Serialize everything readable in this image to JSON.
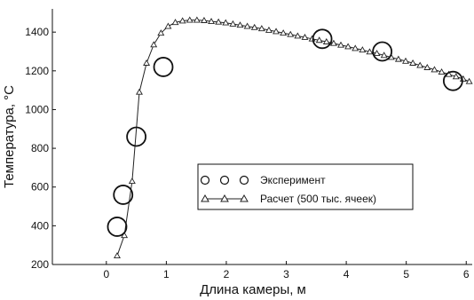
{
  "chart_data": {
    "type": "scatter",
    "title": "",
    "xlabel": "Длина камеры, м",
    "ylabel": "Температура, °C",
    "xlim": [
      -0.9,
      6.1
    ],
    "ylim": [
      200,
      1520
    ],
    "xticks": [
      0,
      1,
      2,
      3,
      4,
      5,
      6
    ],
    "yticks": [
      200,
      400,
      600,
      800,
      1000,
      1200,
      1400
    ],
    "xtick_labels": [
      "0",
      "1",
      "2",
      "3",
      "4",
      "5",
      "6"
    ],
    "ytick_labels": [
      "200",
      "400",
      "600",
      "800",
      "1000",
      "1200",
      "1400"
    ],
    "grid": false,
    "legend_position": "center-right",
    "series": [
      {
        "name": "Эксперимент",
        "marker": "circle",
        "line": false,
        "x": [
          0.18,
          0.28,
          0.5,
          0.95,
          3.6,
          4.6,
          5.78
        ],
        "y": [
          395,
          560,
          860,
          1220,
          1365,
          1300,
          1148
        ]
      },
      {
        "name": "Расчет (500 тыс. ячеек)",
        "marker": "triangle",
        "line": true,
        "x": [
          0.18,
          0.3,
          0.43,
          0.55,
          0.67,
          0.79,
          0.91,
          1.03,
          1.15,
          1.27,
          1.39,
          1.51,
          1.63,
          1.75,
          1.87,
          1.99,
          2.11,
          2.23,
          2.35,
          2.47,
          2.59,
          2.71,
          2.83,
          2.95,
          3.07,
          3.19,
          3.31,
          3.43,
          3.55,
          3.67,
          3.79,
          3.91,
          4.03,
          4.15,
          4.27,
          4.39,
          4.51,
          4.63,
          4.75,
          4.87,
          4.99,
          5.11,
          5.23,
          5.35,
          5.47,
          5.59,
          5.71,
          5.83,
          5.95,
          6.05
        ],
        "y": [
          245,
          350,
          630,
          1090,
          1240,
          1335,
          1395,
          1430,
          1450,
          1458,
          1462,
          1462,
          1460,
          1455,
          1452,
          1448,
          1442,
          1436,
          1430,
          1424,
          1418,
          1410,
          1403,
          1395,
          1388,
          1380,
          1373,
          1365,
          1358,
          1350,
          1342,
          1333,
          1325,
          1316,
          1308,
          1298,
          1290,
          1280,
          1270,
          1260,
          1250,
          1240,
          1228,
          1217,
          1206,
          1194,
          1182,
          1170,
          1158,
          1145
        ]
      }
    ]
  }
}
